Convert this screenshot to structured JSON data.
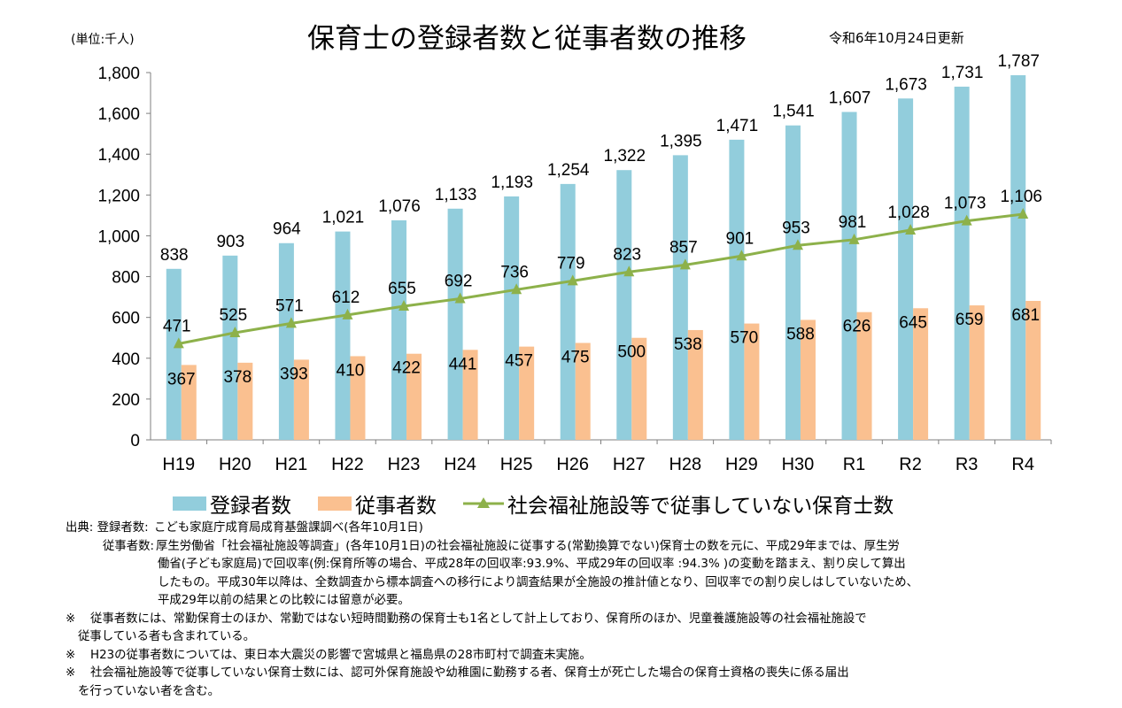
{
  "header": {
    "unit": "(単位:千人)",
    "title": "保育士の登録者数と従事者数の推移",
    "updated": "令和6年10月24日更新"
  },
  "colors": {
    "registered": "#92CDDC",
    "employed": "#FAC090",
    "line": "#8DB14A",
    "axis": "#7f7f7f"
  },
  "chart_data": {
    "type": "bar",
    "categories": [
      "H19",
      "H20",
      "H21",
      "H22",
      "H23",
      "H24",
      "H25",
      "H26",
      "H27",
      "H28",
      "H29",
      "H30",
      "R1",
      "R2",
      "R3",
      "R4"
    ],
    "ylim": [
      0,
      1800
    ],
    "yticks": [
      "0",
      "200",
      "400",
      "600",
      "800",
      "1,000",
      "1,200",
      "1,400",
      "1,600",
      "1,800"
    ],
    "ytick_values": [
      0,
      200,
      400,
      600,
      800,
      1000,
      1200,
      1400,
      1600,
      1800
    ],
    "series": [
      {
        "name": "登録者数",
        "type": "bar",
        "values": [
          838,
          903,
          964,
          1021,
          1076,
          1133,
          1193,
          1254,
          1322,
          1395,
          1471,
          1541,
          1607,
          1673,
          1731,
          1787
        ],
        "labels": [
          "838",
          "903",
          "964",
          "1,021",
          "1,076",
          "1,133",
          "1,193",
          "1,254",
          "1,322",
          "1,395",
          "1,471",
          "1,541",
          "1,607",
          "1,673",
          "1,731",
          "1,787"
        ]
      },
      {
        "name": "従事者数",
        "type": "bar",
        "values": [
          367,
          378,
          393,
          410,
          422,
          441,
          457,
          475,
          500,
          538,
          570,
          588,
          626,
          645,
          659,
          681
        ],
        "labels": [
          "367",
          "378",
          "393",
          "410",
          "422",
          "441",
          "457",
          "475",
          "500",
          "538",
          "570",
          "588",
          "626",
          "645",
          "659",
          "681"
        ]
      },
      {
        "name": "社会福祉施設等で従事していない保育士数",
        "type": "line",
        "values": [
          471,
          525,
          571,
          612,
          655,
          692,
          736,
          779,
          823,
          857,
          901,
          953,
          981,
          1028,
          1073,
          1106
        ],
        "labels": [
          "471",
          "525",
          "571",
          "612",
          "655",
          "692",
          "736",
          "779",
          "823",
          "857",
          "901",
          "953",
          "981",
          "1,028",
          "1,073",
          "1,106"
        ]
      }
    ]
  },
  "legend": {
    "registered": "登録者数",
    "employed": "従事者数",
    "line": "社会福祉施設等で従事していない保育士数"
  },
  "notes": {
    "source_label": "出典:",
    "registered_label": "登録者数:",
    "registered_text": "こども家庭庁成育局成育基盤課調べ(各年10月1日)",
    "employed_label": "従事者数:",
    "employed_lines": [
      "厚生労働省「社会福祉施設等調査」(各年10月1日)の社会福祉施設に従事する(常勤換算でない)保育士の数を元に、平成29年までは、厚生労",
      "働省(子ども家庭局)で回収率(例:保育所等の場合、平成28年の回収率:93.9%、平成29年の回収率 :94.3% )の変動を踏まえ、割り戻して算出",
      "したもの。平成30年以降は、全数調査から標本調査への移行により調査結果が全施設の推計値となり、回収率での割り戻しはしていないため、",
      "平成29年以前の結果との比較には留意が必要。"
    ],
    "mark": "※",
    "note1_lines": [
      "従事者数には、常勤保育士のほか、常勤ではない短時間勤務の保育士も1名として計上しており、保育所のほか、児童養護施設等の社会福祉施設で",
      "従事している者も含まれている。"
    ],
    "note2": "H23の従事者数については、東日本大震災の影響で宮城県と福島県の28市町村で調査未実施。",
    "note3_lines": [
      "社会福祉施設等で従事していない保育士数には、認可外保育施設や幼稚園に勤務する者、保育士が死亡した場合の保育士資格の喪失に係る届出",
      "を行っていない者を含む。"
    ]
  }
}
